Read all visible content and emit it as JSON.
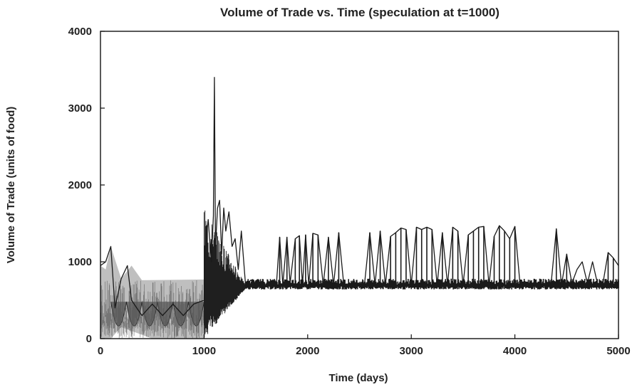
{
  "chart_data": {
    "type": "line",
    "title": "Volume of Trade vs. Time (speculation at t=1000)",
    "xlabel": "Time (days)",
    "ylabel": "Volume of Trade (units of food)",
    "xlim": [
      0,
      5000
    ],
    "ylim": [
      0,
      4000
    ],
    "xticks": [
      0,
      1000,
      2000,
      3000,
      4000,
      5000
    ],
    "yticks": [
      0,
      1000,
      2000,
      3000,
      4000
    ],
    "xtick_labels": [
      "0",
      "1000",
      "2000",
      "3000",
      "4000",
      "5000"
    ],
    "ytick_labels": [
      "0",
      "1000",
      "2000",
      "3000",
      "4000"
    ],
    "grid": false,
    "legend": "none",
    "line_color": "#1a1a1a",
    "band_color": "#8a8a8a",
    "series": [
      {
        "envelope_upper": [
          [
            0,
            950
          ],
          [
            50,
            900
          ],
          [
            100,
            1200
          ],
          [
            200,
            780
          ],
          [
            300,
            950
          ],
          [
            400,
            760
          ],
          [
            1000,
            770
          ]
        ],
        "envelope_lower": [
          [
            0,
            0
          ],
          [
            100,
            0
          ],
          [
            200,
            150
          ],
          [
            500,
            0
          ],
          [
            1000,
            0
          ]
        ],
        "baseline": [
          [
            1400,
            700
          ],
          [
            5000,
            700
          ]
        ],
        "x": [
          0,
          50,
          100,
          140,
          200,
          260,
          300,
          400,
          500,
          600,
          700,
          800,
          900,
          1000,
          1010,
          1040,
          1070,
          1090,
          1100,
          1110,
          1130,
          1150,
          1170,
          1190,
          1210,
          1240,
          1270,
          1300,
          1330,
          1360,
          1400,
          1450,
          1500,
          1600,
          1700,
          1730,
          1760,
          1800,
          1830,
          1880,
          1920,
          1950,
          1980,
          2010,
          2050,
          2100,
          2150,
          2200,
          2250,
          2300,
          2350,
          2400,
          2450,
          2500,
          2550,
          2600,
          2650,
          2700,
          2750,
          2800,
          2850,
          2900,
          2950,
          3000,
          3050,
          3100,
          3150,
          3200,
          3250,
          3300,
          3350,
          3400,
          3450,
          3500,
          3550,
          3600,
          3650,
          3700,
          3750,
          3800,
          3850,
          3900,
          3950,
          4000,
          4050,
          4100,
          4150,
          4200,
          4250,
          4300,
          4350,
          4400,
          4450,
          4500,
          4550,
          4600,
          4650,
          4700,
          4750,
          4800,
          4850,
          4900,
          4950,
          5000
        ],
        "y": [
          950,
          1000,
          1200,
          400,
          780,
          950,
          500,
          300,
          450,
          300,
          450,
          300,
          450,
          500,
          1200,
          1550,
          1000,
          1600,
          3400,
          1200,
          1700,
          1800,
          1100,
          1700,
          1400,
          1650,
          1200,
          1300,
          900,
          1400,
          700,
          760,
          720,
          700,
          740,
          1320,
          700,
          1320,
          720,
          1300,
          1340,
          700,
          1350,
          700,
          1370,
          1350,
          700,
          1320,
          700,
          1380,
          680,
          700,
          720,
          700,
          730,
          1380,
          700,
          1400,
          700,
          1330,
          1380,
          1440,
          1420,
          700,
          1450,
          1420,
          1450,
          1420,
          700,
          1380,
          700,
          1450,
          1400,
          700,
          1350,
          1400,
          1450,
          1460,
          700,
          1330,
          1470,
          1400,
          1300,
          1460,
          700,
          720,
          700,
          720,
          730,
          700,
          720,
          1430,
          700,
          1100,
          720,
          900,
          1000,
          720,
          1000,
          700,
          720,
          1120,
          1050,
          950
        ]
      }
    ]
  }
}
